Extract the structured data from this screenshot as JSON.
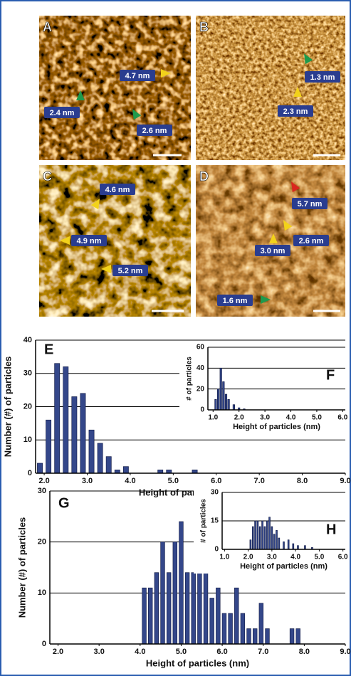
{
  "images": [
    {
      "panel": "A",
      "annotations": [
        "4.7 nm",
        "2.4 nm",
        "2.6 nm"
      ]
    },
    {
      "panel": "B",
      "annotations": [
        "1.3 nm",
        "2.3 nm"
      ]
    },
    {
      "panel": "C",
      "annotations": [
        "4.6 nm",
        "4.9 nm",
        "5.2 nm"
      ]
    },
    {
      "panel": "D",
      "annotations": [
        "5.7 nm",
        "2.6 nm",
        "3.0 nm",
        "1.6 nm"
      ]
    }
  ],
  "chart_data": [
    {
      "type": "bar",
      "panel": "E",
      "color": "#34478a",
      "x": [
        1.9,
        2.1,
        2.3,
        2.5,
        2.7,
        2.9,
        3.1,
        3.3,
        3.5,
        3.7,
        3.9,
        4.7,
        4.9,
        5.5
      ],
      "values": [
        3,
        16,
        33,
        32,
        23,
        24,
        13,
        9,
        5,
        1,
        2,
        1,
        1,
        1
      ],
      "xlim": [
        1.8,
        9.0
      ],
      "xticks": [
        {
          "value": 2,
          "label": "2.0"
        },
        {
          "value": 3,
          "label": "3.0"
        },
        {
          "value": 4,
          "label": "4.0"
        },
        {
          "value": 5,
          "label": "5.0"
        },
        {
          "value": 6,
          "label": "6.0"
        },
        {
          "value": 7,
          "label": "7.0"
        },
        {
          "value": 8,
          "label": "8.0"
        },
        {
          "value": 9,
          "label": "9.0"
        }
      ],
      "ylim": [
        0,
        40
      ],
      "yticks": [
        0,
        10,
        20,
        30,
        40
      ],
      "grid": true,
      "xlabel": "Height of particles (nm)",
      "ylabel": "Number (#) of particles"
    },
    {
      "type": "bar",
      "panel": "F",
      "color": "#34478a",
      "x": [
        1.1,
        1.2,
        1.3,
        1.4,
        1.5,
        1.6,
        1.8,
        2.0,
        2.2
      ],
      "values": [
        10,
        20,
        40,
        27,
        15,
        10,
        5,
        2,
        1
      ],
      "xlim": [
        0.8,
        6.1
      ],
      "xticks": [
        {
          "value": 1,
          "label": "1.0"
        },
        {
          "value": 2,
          "label": "2.0"
        },
        {
          "value": 3,
          "label": "3.0"
        },
        {
          "value": 4,
          "label": "4.0"
        },
        {
          "value": 5,
          "label": "5.0"
        },
        {
          "value": 6,
          "label": "6.0"
        }
      ],
      "ylim": [
        0,
        60
      ],
      "yticks": [
        0,
        20,
        40,
        60
      ],
      "grid": true,
      "xlabel": "Height of particles (nm)",
      "ylabel": "# of particles"
    },
    {
      "type": "bar",
      "panel": "G",
      "color": "#34478a",
      "x": [
        4.1,
        4.25,
        4.4,
        4.55,
        4.7,
        4.85,
        5.0,
        5.15,
        5.3,
        5.45,
        5.6,
        5.75,
        5.9,
        6.05,
        6.2,
        6.35,
        6.5,
        6.65,
        6.8,
        6.95,
        7.1,
        7.7,
        7.85
      ],
      "values": [
        11,
        11,
        14,
        20,
        14,
        20,
        24,
        14,
        14,
        17,
        14,
        9,
        11,
        6,
        6,
        11,
        6,
        3,
        3,
        8,
        3,
        3,
        3
      ],
      "xlim": [
        1.8,
        9.0
      ],
      "xticks": [
        {
          "value": 2,
          "label": "2.0"
        },
        {
          "value": 3,
          "label": "3.0"
        },
        {
          "value": 4,
          "label": "4.0"
        },
        {
          "value": 5,
          "label": "5.0"
        },
        {
          "value": 6,
          "label": "6.0"
        },
        {
          "value": 7,
          "label": "7.0"
        },
        {
          "value": 8,
          "label": "8.0"
        },
        {
          "value": 9,
          "label": "9.0"
        }
      ],
      "ylim": [
        0,
        30
      ],
      "yticks": [
        0,
        10,
        20,
        30
      ],
      "grid": true,
      "xlabel": "Height of particles (nm)",
      "ylabel": "Number (#) of particles"
    },
    {
      "type": "bar",
      "panel": "H",
      "color": "#34478a",
      "x": [
        2.1,
        2.2,
        2.3,
        2.4,
        2.5,
        2.6,
        2.7,
        2.8,
        2.9,
        3.0,
        3.1,
        3.2,
        3.3,
        3.5,
        3.7,
        3.9,
        4.1,
        4.4,
        4.7
      ],
      "values": [
        5,
        12,
        15,
        15,
        12,
        15,
        12,
        15,
        17,
        12,
        8,
        10,
        6,
        4,
        5,
        3,
        2,
        2,
        1
      ],
      "xlim": [
        0.9,
        6.1
      ],
      "xticks": [
        {
          "value": 1,
          "label": "1.0"
        },
        {
          "value": 2,
          "label": "2.0"
        },
        {
          "value": 3,
          "label": "3.0"
        },
        {
          "value": 4,
          "label": "4.0"
        },
        {
          "value": 5,
          "label": "5.0"
        },
        {
          "value": 6,
          "label": "6.0"
        }
      ],
      "ylim": [
        0,
        30
      ],
      "yticks": [
        0,
        15,
        30
      ],
      "grid": true,
      "xlabel": "Height of particles (nm)",
      "ylabel": "# of particles"
    }
  ]
}
